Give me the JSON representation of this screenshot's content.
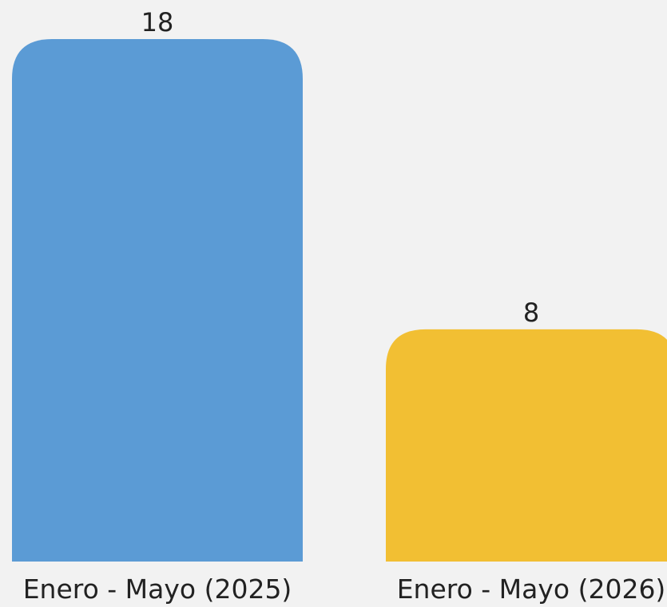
{
  "chart_data": {
    "type": "bar",
    "categories": [
      "Enero - Mayo (2025)",
      "Enero - Mayo (2026)"
    ],
    "values": [
      18,
      8
    ],
    "value_labels": [
      "18",
      "8"
    ],
    "colors": [
      "#5b9bd5",
      "#f2bf33"
    ],
    "background": "#f2f2f2",
    "ylim": [
      0,
      18
    ],
    "grid": false,
    "legend": "none"
  }
}
